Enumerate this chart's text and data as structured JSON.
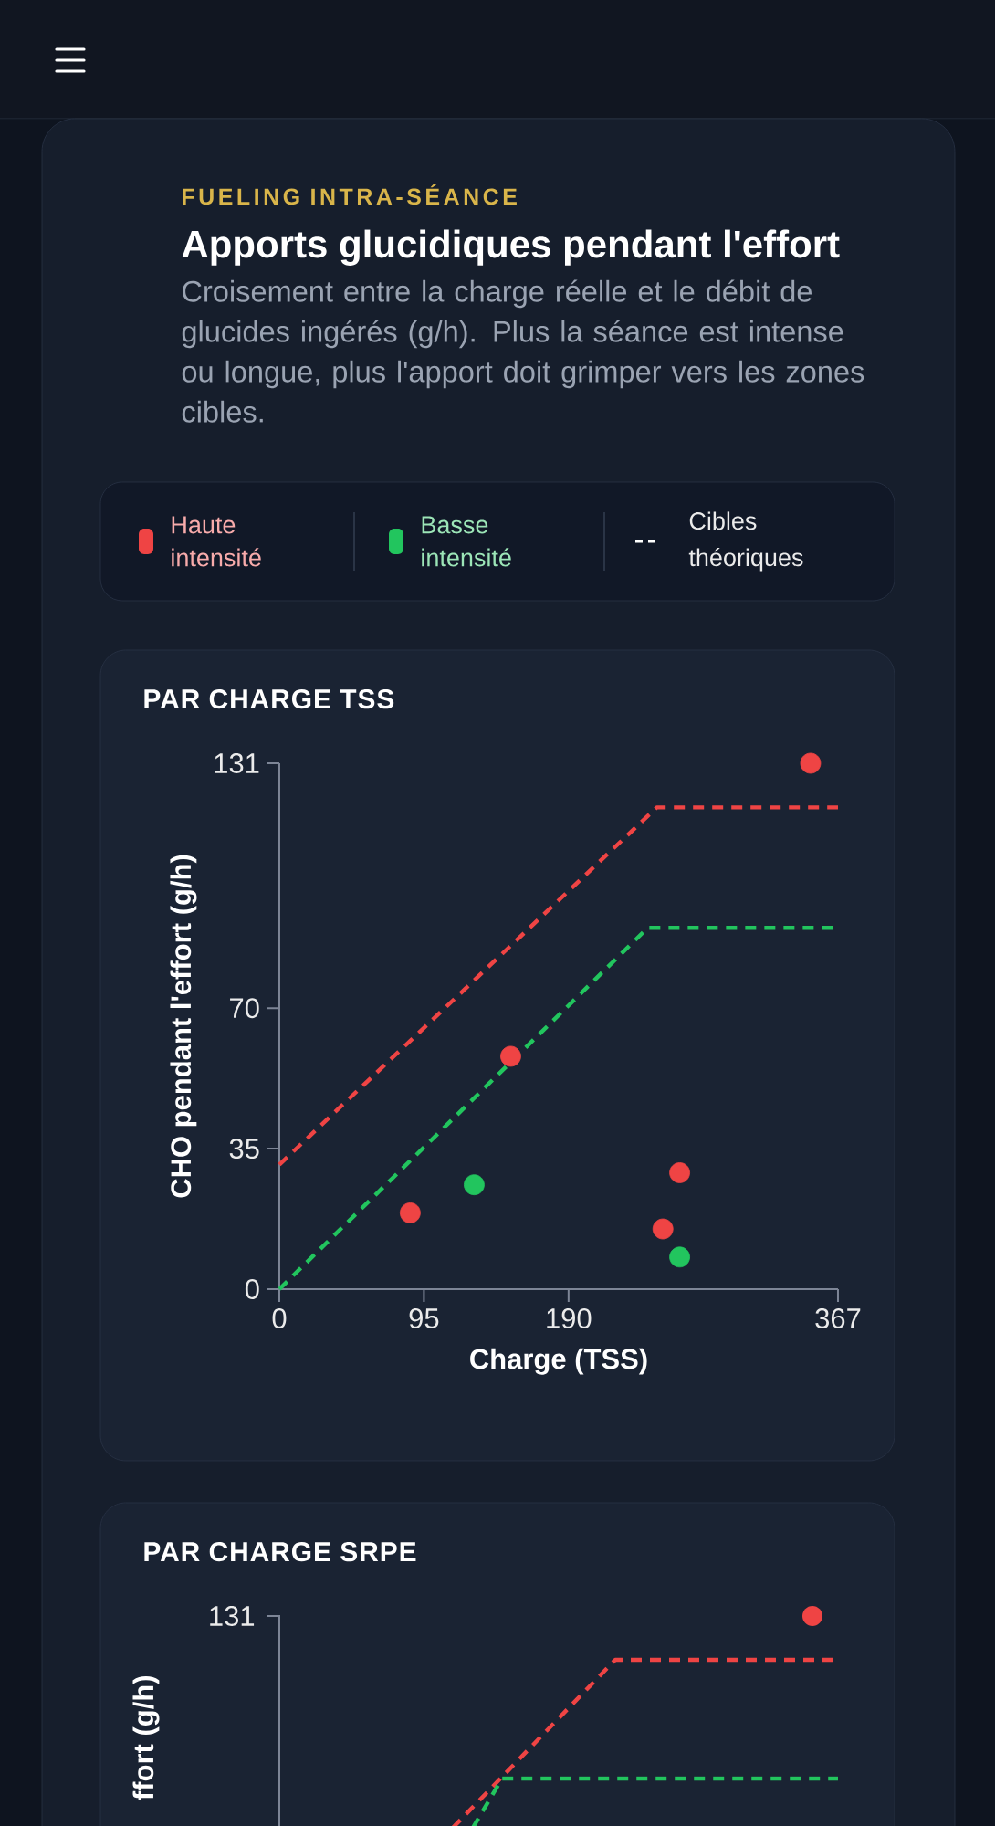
{
  "chart_data": [
    {
      "type": "other",
      "title": "Apports glucidiques pendant l'effort",
      "subtitle": "Croisement entre la charge réelle et le débit de glucides ingérés (g/h). Plus la séance est intense ou longue, plus l'apport doit grimper vers les zones cibles.",
      "annotations": [
        "FUELING INTRA-SÉANCE"
      ]
    },
    {
      "type": "scatter",
      "title": "PAR CHARGE TSS",
      "xlabel": "Charge (TSS)",
      "ylabel": "CHO pendant l'effort (g/h)",
      "xlim": [
        0,
        367
      ],
      "ylim": [
        0,
        131
      ],
      "xticks": [
        0,
        95,
        190,
        367
      ],
      "yticks": [
        0,
        35,
        70,
        131
      ],
      "marker": "circle",
      "legend": "top",
      "annotations": [
        "Cibles théoriques"
      ],
      "series": [
        {
          "name": "Haute intensité",
          "color": "#ef4444",
          "x": [
            86,
            152,
            263,
            252,
            349
          ],
          "values": [
            19,
            58,
            29,
            15,
            131
          ]
        },
        {
          "name": "Basse intensité",
          "color": "#22c55e",
          "x": [
            128,
            263
          ],
          "values": [
            26,
            8
          ]
        },
        {
          "type": "line",
          "line_style": "dashed",
          "marker": "none",
          "color": "#ef4444",
          "x": [
            0,
            248,
            367
          ],
          "values": [
            31,
            120,
            120
          ]
        },
        {
          "type": "line",
          "line_style": "dashed",
          "marker": "none",
          "color": "#22c55e",
          "x": [
            0,
            242,
            367
          ],
          "values": [
            0,
            90,
            90
          ]
        }
      ]
    },
    {
      "type": "other",
      "title": "PAR CHARGE SRPE",
      "ylabel": "ffort (g/h)",
      "annotations": [
        "131"
      ]
    }
  ]
}
